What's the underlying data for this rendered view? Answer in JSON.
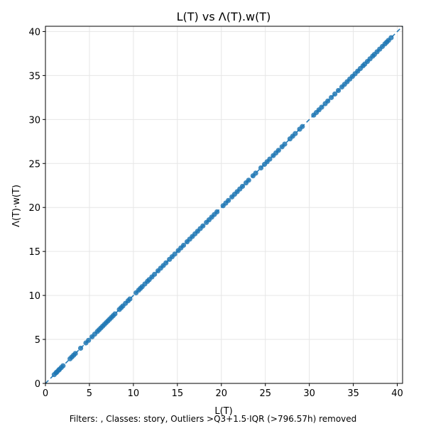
{
  "chart_data": {
    "type": "scatter",
    "title": "L(T) vs Λ(T).w(T)",
    "xlabel": "L(T)",
    "ylabel": "Λ(T)·w(T)",
    "xlim": [
      0,
      40.6
    ],
    "ylim": [
      0,
      40.6
    ],
    "xticks": [
      0,
      5,
      10,
      15,
      20,
      25,
      30,
      35,
      40
    ],
    "yticks": [
      0,
      5,
      10,
      15,
      20,
      25,
      30,
      35,
      40
    ],
    "grid": true,
    "reference_line": {
      "style": "dashed",
      "from": [
        0,
        0
      ],
      "to": [
        40.6,
        40.6
      ]
    },
    "point_color": "#1f77b4",
    "footnote": "Filters: , Classes: story, Outliers >Q3+1.5·IQR (>796.57h) removed",
    "series": [
      {
        "x": [
          1.0,
          1.2,
          1.3,
          1.5,
          1.6,
          1.8,
          2.0,
          2.8,
          3.0,
          3.2,
          3.4,
          4.0,
          4.6,
          4.9,
          5.3,
          5.6,
          5.9,
          6.1,
          6.3,
          6.5,
          6.7,
          6.9,
          7.1,
          7.3,
          7.5,
          7.7,
          7.9,
          8.4,
          8.6,
          8.8,
          9.1,
          9.4,
          9.6,
          10.3,
          10.6,
          10.8,
          11.0,
          11.3,
          11.6,
          11.8,
          12.1,
          12.4,
          12.8,
          13.1,
          13.4,
          13.7,
          14.1,
          14.4,
          14.7,
          15.1,
          15.4,
          15.7,
          16.1,
          16.4,
          16.7,
          17.0,
          17.3,
          17.6,
          17.9,
          18.3,
          18.6,
          18.9,
          19.2,
          19.5,
          20.2,
          20.5,
          20.8,
          21.2,
          21.5,
          21.8,
          22.1,
          22.4,
          22.8,
          23.1,
          23.6,
          23.9,
          24.5,
          24.9,
          25.2,
          25.5,
          25.9,
          26.2,
          26.5,
          26.9,
          27.2,
          27.8,
          28.1,
          28.4,
          28.9,
          29.2,
          30.5,
          30.8,
          31.1,
          31.4,
          31.8,
          32.1,
          32.5,
          32.9,
          33.3,
          33.7,
          34.0,
          34.3,
          34.6,
          34.9,
          35.2,
          35.5,
          35.8,
          36.1,
          36.3,
          36.6,
          36.9,
          37.2,
          37.4,
          37.7,
          38.0,
          38.3,
          38.6,
          38.8,
          39.0,
          39.3
        ],
        "y": [
          1.0,
          1.2,
          1.3,
          1.5,
          1.6,
          1.8,
          2.0,
          2.8,
          3.0,
          3.2,
          3.4,
          4.0,
          4.6,
          4.9,
          5.3,
          5.6,
          5.9,
          6.1,
          6.3,
          6.5,
          6.7,
          6.9,
          7.1,
          7.3,
          7.5,
          7.7,
          7.9,
          8.4,
          8.6,
          8.8,
          9.1,
          9.4,
          9.6,
          10.3,
          10.6,
          10.8,
          11.0,
          11.3,
          11.6,
          11.8,
          12.1,
          12.4,
          12.8,
          13.1,
          13.4,
          13.7,
          14.1,
          14.4,
          14.7,
          15.1,
          15.4,
          15.7,
          16.1,
          16.4,
          16.7,
          17.0,
          17.3,
          17.6,
          17.9,
          18.3,
          18.6,
          18.9,
          19.2,
          19.5,
          20.2,
          20.5,
          20.8,
          21.2,
          21.5,
          21.8,
          22.1,
          22.4,
          22.8,
          23.1,
          23.6,
          23.9,
          24.5,
          24.9,
          25.2,
          25.5,
          25.9,
          26.2,
          26.5,
          26.9,
          27.2,
          27.8,
          28.1,
          28.4,
          28.9,
          29.2,
          30.5,
          30.8,
          31.1,
          31.4,
          31.8,
          32.1,
          32.5,
          32.9,
          33.3,
          33.7,
          34.0,
          34.3,
          34.6,
          34.9,
          35.2,
          35.5,
          35.8,
          36.1,
          36.3,
          36.6,
          36.9,
          37.2,
          37.4,
          37.7,
          38.0,
          38.3,
          38.6,
          38.8,
          39.0,
          39.3
        ]
      }
    ]
  }
}
